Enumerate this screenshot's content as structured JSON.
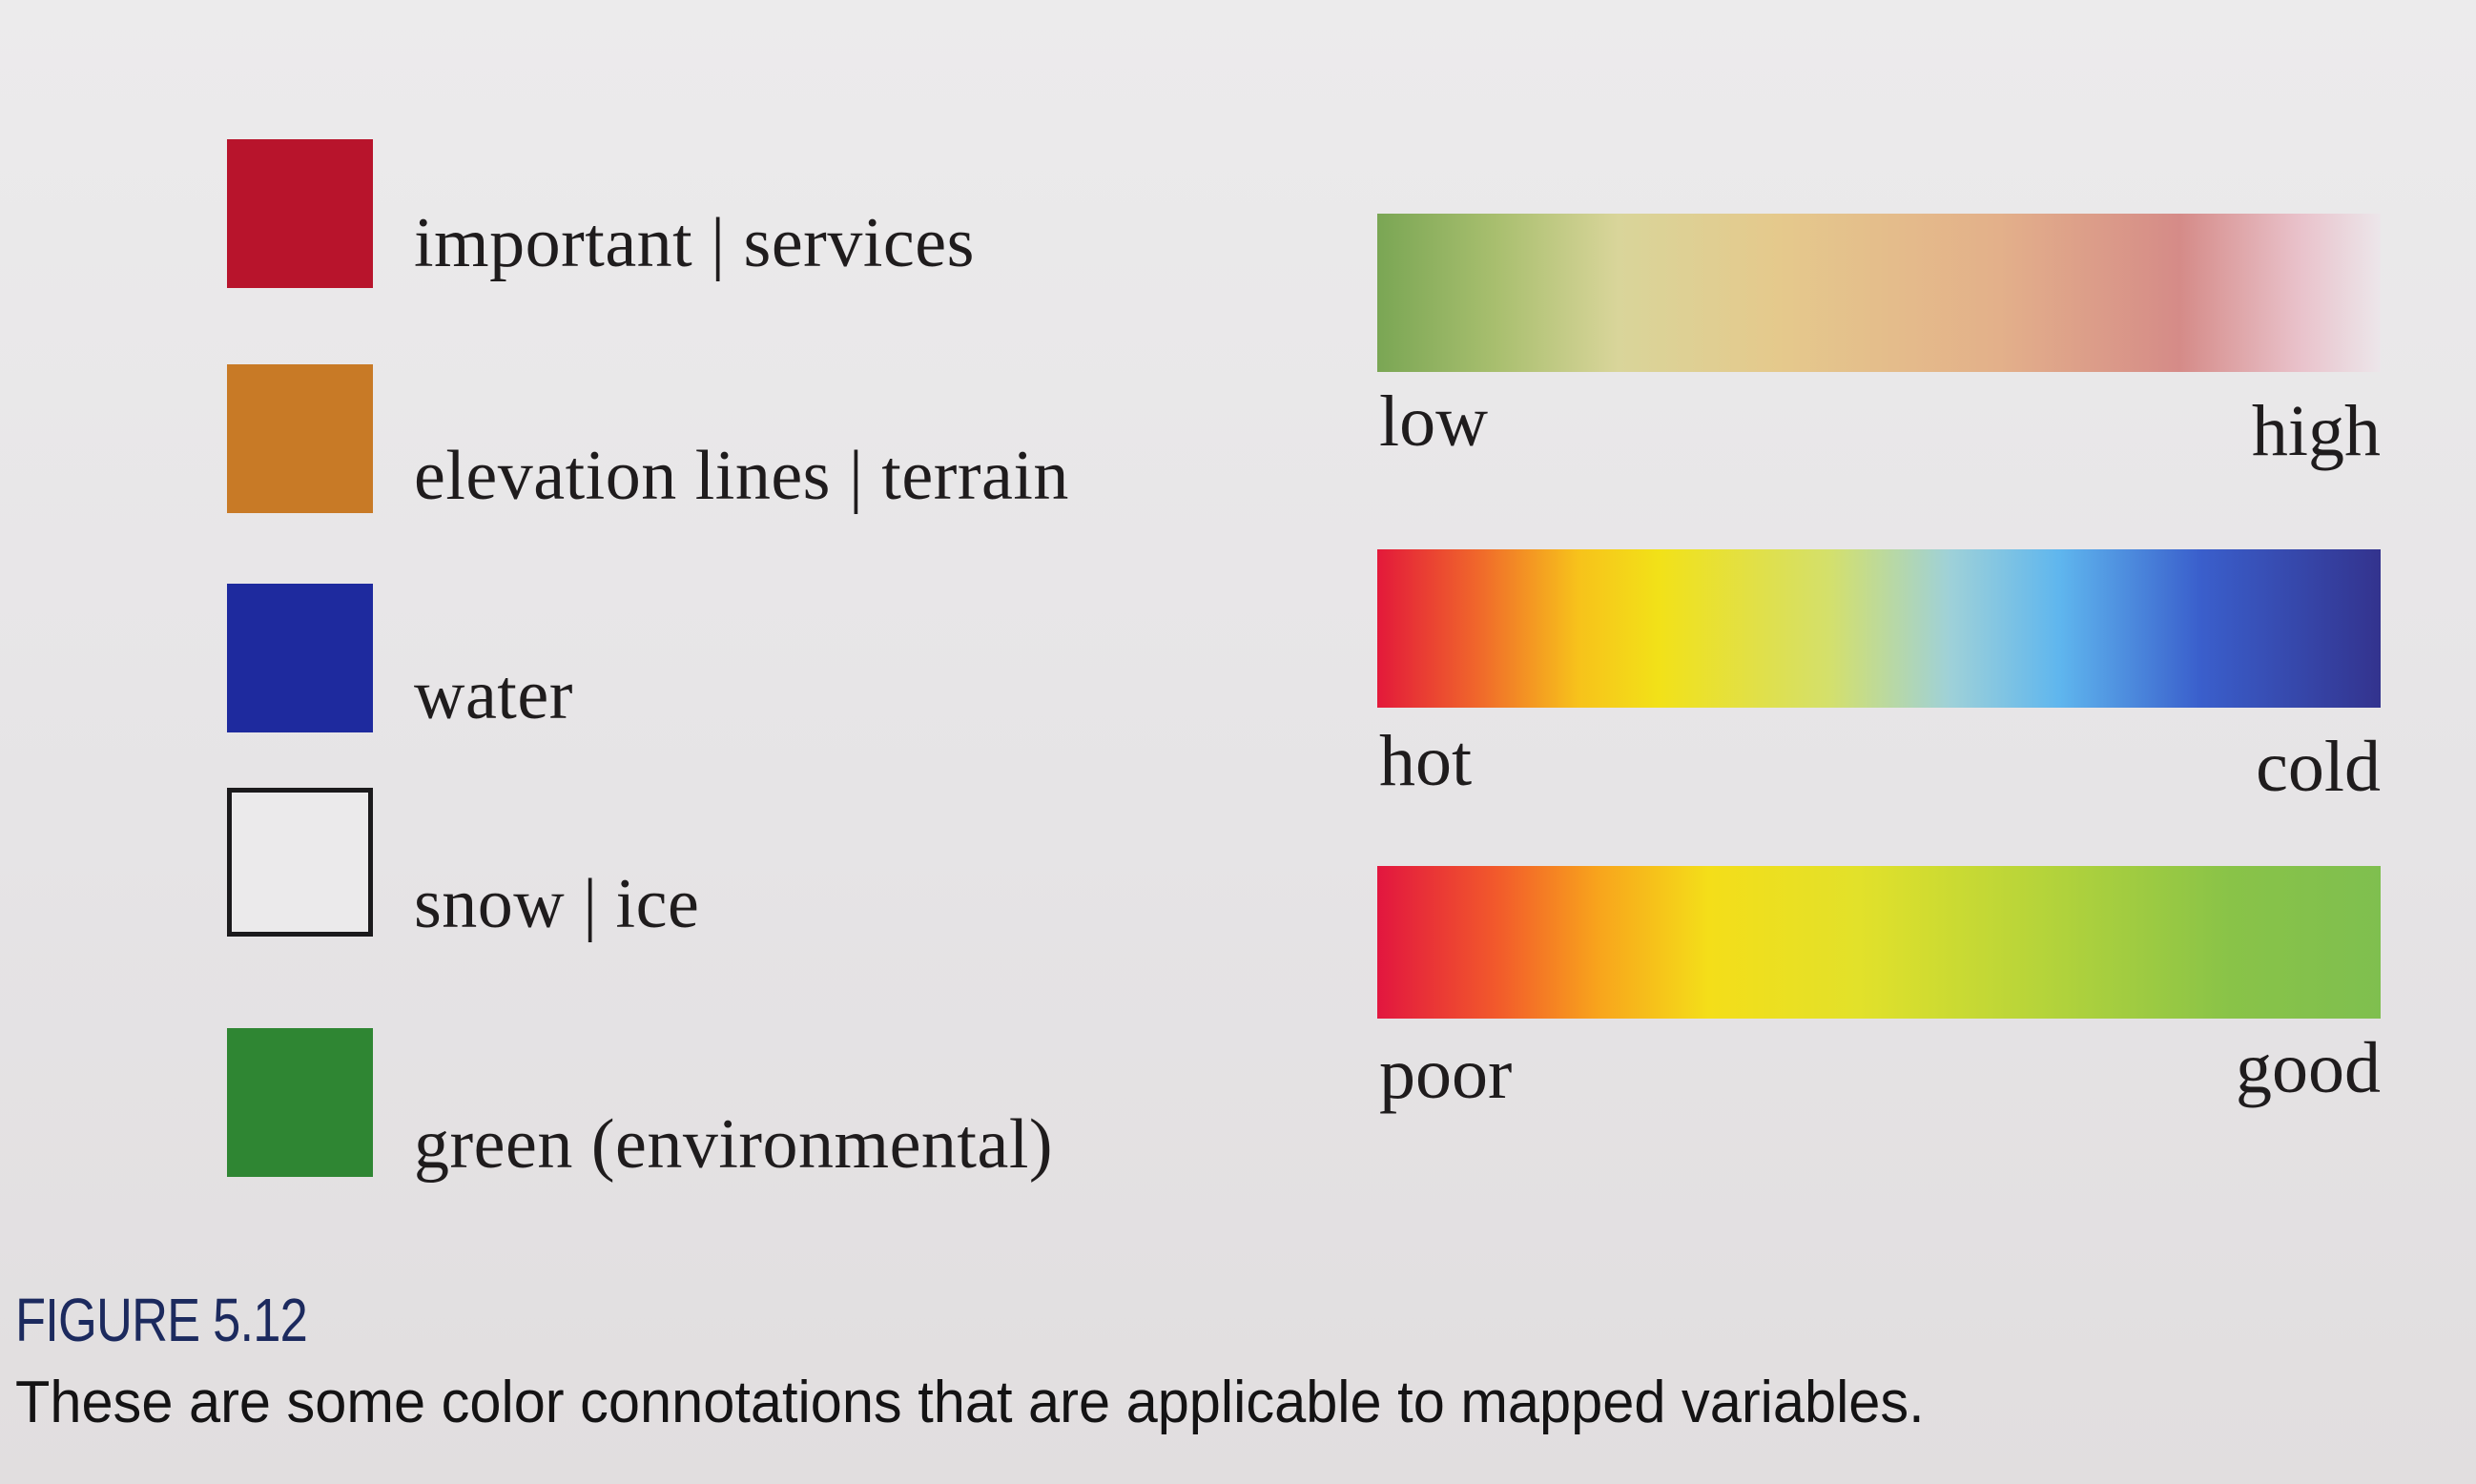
{
  "legend": {
    "items": [
      {
        "label": "important | services",
        "color": "#b8142c",
        "outlined": false
      },
      {
        "label": "elevation lines | terrain",
        "color": "#c87a26",
        "outlined": false
      },
      {
        "label": "water",
        "color": "#1e2a9e",
        "outlined": false
      },
      {
        "label": "snow | ice",
        "color": "#ebeaeb",
        "outlined": true
      },
      {
        "label": "green (environmental)",
        "color": "#2f8633",
        "outlined": false
      }
    ]
  },
  "scales": [
    {
      "low": "low",
      "high": "high",
      "colors": [
        "#7aa654",
        "#d9d59a",
        "#e3b08a",
        "#d58b88",
        "#ece6ea"
      ]
    },
    {
      "low": "hot",
      "high": "cold",
      "colors": [
        "#e3193a",
        "#f2e118",
        "#5fb6ee",
        "#33338e"
      ]
    },
    {
      "low": "poor",
      "high": "good",
      "colors": [
        "#e2163f",
        "#f4de19",
        "#7fbf4f"
      ]
    }
  ],
  "caption": {
    "label": "FIGURE 5.12",
    "text": "These are some color connotations that are applicable to mapped variables."
  }
}
